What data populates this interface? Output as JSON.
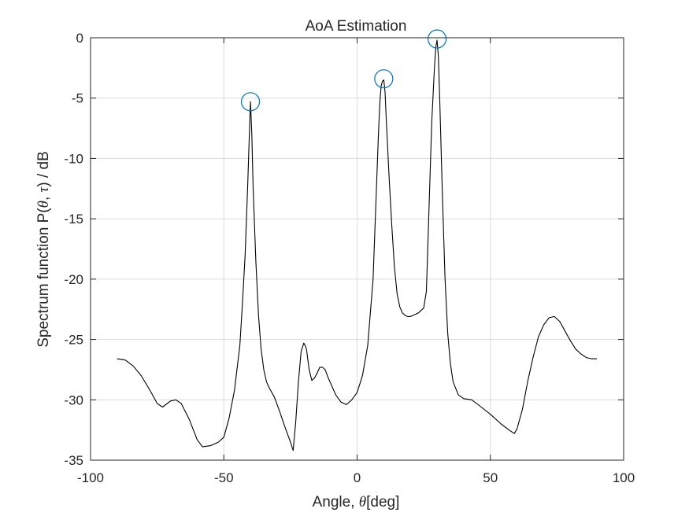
{
  "chart_data": {
    "type": "line",
    "title": "AoA Estimation",
    "xlabel": {
      "pre": "Angle, ",
      "sym": "θ",
      "post": "[deg]"
    },
    "ylabel": {
      "pre": "Spectrum function P(",
      "sym1": "θ",
      "mid": ", ",
      "sym2": "τ",
      "post": ")  / dB"
    },
    "xlim": [
      -100,
      100
    ],
    "ylim": [
      -35,
      0
    ],
    "xticks": [
      -100,
      -50,
      0,
      50,
      100
    ],
    "yticks": [
      0,
      -5,
      -10,
      -15,
      -20,
      -25,
      -30,
      -35
    ],
    "xtick_labels": [
      "-100",
      "-50",
      "0",
      "50",
      "100"
    ],
    "ytick_labels": [
      "0",
      "-5",
      "-10",
      "-15",
      "-20",
      "-25",
      "-30",
      "-35"
    ],
    "grid": true,
    "colors": {
      "line": "#000000",
      "marker": "#0072BD",
      "grid": "#dcdcdc",
      "axis": "#262626"
    },
    "series": [
      {
        "x": [
          -90,
          -87,
          -84,
          -81,
          -78,
          -75,
          -73,
          -70,
          -68,
          -66,
          -63,
          -60,
          -58,
          -55,
          -52,
          -50,
          -48,
          -46,
          -44,
          -43,
          -42,
          -41,
          -40.5,
          -40,
          -39.5,
          -39,
          -38,
          -37,
          -36,
          -35,
          -34,
          -33,
          -31,
          -29,
          -27,
          -25,
          -24,
          -23,
          -22,
          -21,
          -20,
          -19.5,
          -19,
          -18,
          -17,
          -16,
          -15,
          -14,
          -13,
          -12,
          -11,
          -10,
          -8,
          -6,
          -4,
          -2,
          0,
          2,
          4,
          6,
          7,
          8,
          8.5,
          9,
          9.5,
          10,
          10.5,
          11,
          12,
          13,
          14,
          15,
          16,
          17,
          18,
          19,
          20,
          21,
          22,
          23,
          24,
          25,
          26,
          27,
          28,
          29,
          29.5,
          30,
          30.5,
          31,
          32,
          33,
          34,
          35,
          36,
          38,
          40,
          43,
          46,
          50,
          54,
          57,
          59,
          60,
          62,
          64,
          66,
          68,
          70,
          72,
          74,
          76,
          78,
          80,
          82,
          84,
          86,
          88,
          90
        ],
        "y": [
          -26.6,
          -26.7,
          -27.2,
          -28.0,
          -29.1,
          -30.3,
          -30.6,
          -30.1,
          -30.0,
          -30.3,
          -31.6,
          -33.3,
          -33.9,
          -33.8,
          -33.5,
          -33.1,
          -31.5,
          -29.2,
          -25.5,
          -22.0,
          -18.0,
          -12.0,
          -8.5,
          -5.3,
          -8.0,
          -12.5,
          -18.5,
          -23.0,
          -25.8,
          -27.5,
          -28.5,
          -29.0,
          -29.8,
          -31.0,
          -32.3,
          -33.5,
          -34.2,
          -31.8,
          -28.5,
          -26.0,
          -25.3,
          -25.5,
          -25.8,
          -27.5,
          -28.4,
          -28.2,
          -27.8,
          -27.3,
          -27.3,
          -27.5,
          -28.1,
          -28.6,
          -29.6,
          -30.2,
          -30.4,
          -30.0,
          -29.4,
          -28.0,
          -25.5,
          -20.0,
          -14.0,
          -8.0,
          -5.5,
          -4.0,
          -3.6,
          -3.5,
          -4.5,
          -7.0,
          -11.5,
          -15.5,
          -19.0,
          -21.2,
          -22.3,
          -22.8,
          -23.0,
          -23.1,
          -23.1,
          -23.0,
          -22.9,
          -22.8,
          -22.6,
          -22.4,
          -21.0,
          -14.0,
          -7.0,
          -2.5,
          -0.8,
          -0.2,
          -1.5,
          -5.0,
          -13.0,
          -20.0,
          -24.5,
          -27.0,
          -28.5,
          -29.6,
          -29.9,
          -30.0,
          -30.5,
          -31.2,
          -32.0,
          -32.5,
          -32.8,
          -32.4,
          -30.8,
          -28.5,
          -26.5,
          -24.8,
          -23.8,
          -23.2,
          -23.1,
          -23.5,
          -24.3,
          -25.1,
          -25.8,
          -26.2,
          -26.5,
          -26.6,
          -26.6
        ]
      }
    ],
    "peaks": [
      {
        "x": -40,
        "y": -5.3
      },
      {
        "x": 10,
        "y": -3.4
      },
      {
        "x": 30,
        "y": -0.1
      }
    ]
  }
}
